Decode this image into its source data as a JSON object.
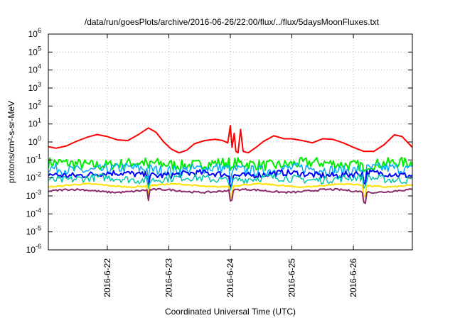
{
  "chart_data": {
    "type": "line",
    "title": "/data/run/goesPlots/archive/2016-06-26/22:00/flux/../flux/5daysMoonFluxes.txt",
    "xlabel": "Coordinated Universal Time (UTC)",
    "ylabel": "protons/cm²-s-sr-MeV",
    "y_scale": "log",
    "ylim": [
      1e-06,
      1000000.0
    ],
    "y_ticks": [
      {
        "value": 1e-06,
        "base": "10",
        "exp": "-6"
      },
      {
        "value": 1e-05,
        "base": "10",
        "exp": "-5"
      },
      {
        "value": 0.0001,
        "base": "10",
        "exp": "-4"
      },
      {
        "value": 0.001,
        "base": "10",
        "exp": "-3"
      },
      {
        "value": 0.01,
        "base": "10",
        "exp": "-2"
      },
      {
        "value": 0.1,
        "base": "10",
        "exp": "-1"
      },
      {
        "value": 1,
        "base": "10",
        "exp": "0"
      },
      {
        "value": 10.0,
        "base": "10",
        "exp": "1"
      },
      {
        "value": 100.0,
        "base": "10",
        "exp": "2"
      },
      {
        "value": 1000.0,
        "base": "10",
        "exp": "3"
      },
      {
        "value": 10000.0,
        "base": "10",
        "exp": "4"
      },
      {
        "value": 100000.0,
        "base": "10",
        "exp": "5"
      },
      {
        "value": 1000000.0,
        "base": "10",
        "exp": "6"
      }
    ],
    "xlim": [
      "2016-06-21 01:00",
      "2016-06-26 23:00"
    ],
    "x_ticks": [
      {
        "value": "2016-06-22 00:00",
        "label": "2016-6-22"
      },
      {
        "value": "2016-06-23 00:00",
        "label": "2016-6-23"
      },
      {
        "value": "2016-06-24 00:00",
        "label": "2016-6-24"
      },
      {
        "value": "2016-06-25 00:00",
        "label": "2016-6-25"
      },
      {
        "value": "2016-06-26 00:00",
        "label": "2016-6-26"
      }
    ],
    "grid": true,
    "series": [
      {
        "color": "#ff0000",
        "width": 2,
        "values": [
          [
            "2016-06-21 01:00",
            0.55
          ],
          [
            "2016-06-21 04:00",
            0.45
          ],
          [
            "2016-06-21 08:00",
            0.6
          ],
          [
            "2016-06-21 12:00",
            1.1
          ],
          [
            "2016-06-21 16:00",
            1.8
          ],
          [
            "2016-06-21 20:00",
            2.6
          ],
          [
            "2016-06-22 00:00",
            2.0
          ],
          [
            "2016-06-22 04:00",
            1.3
          ],
          [
            "2016-06-22 08:00",
            1.2
          ],
          [
            "2016-06-22 12:00",
            2.5
          ],
          [
            "2016-06-22 16:00",
            6.0
          ],
          [
            "2016-06-22 19:00",
            3.5
          ],
          [
            "2016-06-22 22:00",
            1.0
          ],
          [
            "2016-06-23 01:00",
            0.4
          ],
          [
            "2016-06-23 04:00",
            0.25
          ],
          [
            "2016-06-23 07:00",
            0.35
          ],
          [
            "2016-06-23 10:00",
            0.8
          ],
          [
            "2016-06-23 14:00",
            1.2
          ],
          [
            "2016-06-23 18:00",
            1.4
          ],
          [
            "2016-06-23 21:00",
            1.2
          ],
          [
            "2016-06-23 23:00",
            0.9
          ],
          [
            "2016-06-24 00:00",
            8.0
          ],
          [
            "2016-06-24 00:40",
            0.5
          ],
          [
            "2016-06-24 01:30",
            3.0
          ],
          [
            "2016-06-24 02:10",
            0.3
          ],
          [
            "2016-06-24 03:00",
            0.25
          ],
          [
            "2016-06-24 04:00",
            5.0
          ],
          [
            "2016-06-24 05:00",
            0.3
          ],
          [
            "2016-06-24 07:00",
            0.25
          ],
          [
            "2016-06-24 10:00",
            0.5
          ],
          [
            "2016-06-24 13:00",
            1.1
          ],
          [
            "2016-06-24 17:00",
            2.2
          ],
          [
            "2016-06-24 21:00",
            1.5
          ],
          [
            "2016-06-25 00:00",
            1.5
          ],
          [
            "2016-06-25 04:00",
            1.2
          ],
          [
            "2016-06-25 08:00",
            0.9
          ],
          [
            "2016-06-25 12:00",
            1.5
          ],
          [
            "2016-06-25 16:00",
            1.4
          ],
          [
            "2016-06-25 20:00",
            0.9
          ],
          [
            "2016-06-26 00:00",
            0.5
          ],
          [
            "2016-06-26 04:00",
            0.3
          ],
          [
            "2016-06-26 08:00",
            0.3
          ],
          [
            "2016-06-26 12:00",
            0.7
          ],
          [
            "2016-06-26 16:00",
            2.5
          ],
          [
            "2016-06-26 19:00",
            2.0
          ],
          [
            "2016-06-26 23:00",
            0.5
          ]
        ]
      },
      {
        "color": "#00ee00",
        "width": 2,
        "band": {
          "center": 0.06,
          "spread": 0.3
        }
      },
      {
        "color": "#00aaff",
        "width": 1.5,
        "band": {
          "center": 0.03,
          "spread": 0.3
        }
      },
      {
        "color": "#0000ff",
        "width": 2,
        "band": {
          "center": 0.016,
          "spread": 0.18
        }
      },
      {
        "color": "#00c8a8",
        "width": 1.5,
        "band": {
          "center": 0.009,
          "spread": 0.22
        }
      },
      {
        "color": "#ffe000",
        "width": 2,
        "band": {
          "center": 0.0038,
          "spread": 0.04
        }
      },
      {
        "color": "#8b2b6b",
        "width": 2,
        "band": {
          "center": 0.0019,
          "spread": 0.05
        }
      }
    ]
  }
}
